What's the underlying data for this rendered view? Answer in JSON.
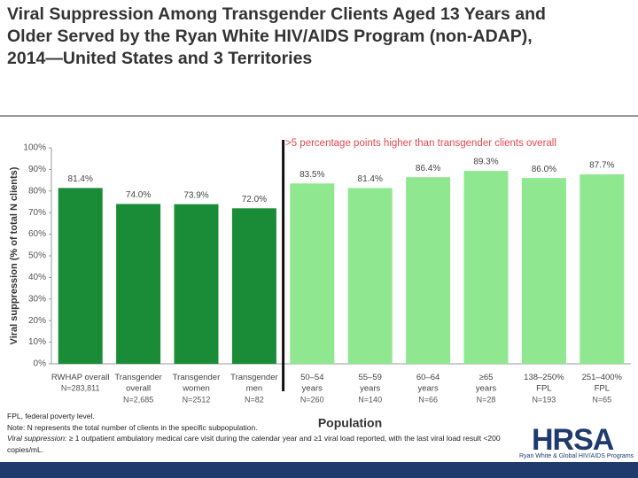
{
  "chart_data": {
    "type": "bar",
    "title": "Viral Suppression Among Transgender Clients Aged 13 Years and Older Served by the Ryan White HIV/AIDS Program (non-ADAP), 2014—United States and 3 Territories",
    "annotation": ">5 percentage points higher than transgender clients  overall",
    "y_label": "Viral suppression (% of total N clients)",
    "x_label": "Population",
    "categories": [
      "RWHAP overall",
      "Transgender\noverall",
      "Transgender\nwomen",
      "Transgender\nmen",
      "50–54\nyears",
      "55–59\nyears",
      "60–64\nyears",
      "≥65\nyears",
      "138–250%\nFPL",
      "251–400%\nFPL"
    ],
    "n_labels": [
      "N=283,811",
      "N=2,685",
      "N=2512",
      "N=82",
      "N=260",
      "N=140",
      "N=66",
      "N=28",
      "N=193",
      "N=65"
    ],
    "values": [
      81.4,
      74.0,
      73.9,
      72.0,
      83.5,
      81.4,
      86.4,
      89.3,
      86.0,
      87.7
    ],
    "value_labels": [
      "81.4%",
      "74.0%",
      "73.9%",
      "72.0%",
      "83.5%",
      "81.4%",
      "86.4%",
      "89.3%",
      "86.0%",
      "87.7%"
    ],
    "colors": [
      "#1a8c37",
      "#1a8c37",
      "#1a8c37",
      "#1a8c37",
      "#8fe88f",
      "#8fe88f",
      "#8fe88f",
      "#8fe88f",
      "#8fe88f",
      "#8fe88f"
    ],
    "ylim": [
      0,
      100
    ],
    "yticks": [
      {
        "value": 0,
        "label": "0%"
      },
      {
        "value": 10,
        "label": "10%"
      },
      {
        "value": 20,
        "label": "20%"
      },
      {
        "value": 30,
        "label": "30%"
      },
      {
        "value": 40,
        "label": "40%"
      },
      {
        "value": 50,
        "label": "50%"
      },
      {
        "value": 60,
        "label": "60%"
      },
      {
        "value": 70,
        "label": "70%"
      },
      {
        "value": 80,
        "label": "80%"
      },
      {
        "value": 90,
        "label": "90%"
      },
      {
        "value": 100,
        "label": "100%"
      }
    ],
    "notes": [
      "FPL, federal poverty level.",
      "Note: N represents the total number of clients in the specific subpopulation."
    ],
    "note_italic": "Viral suppression:",
    "note_rest": " ≥ 1 outpatient ambulatory medical care visit during the calendar year and ≥1 viral load reported, with the last  viral load result <200 copies/mL.",
    "logo": "HRSA",
    "logo_sub": "Ryan White & Global HIV/AIDS Programs"
  }
}
